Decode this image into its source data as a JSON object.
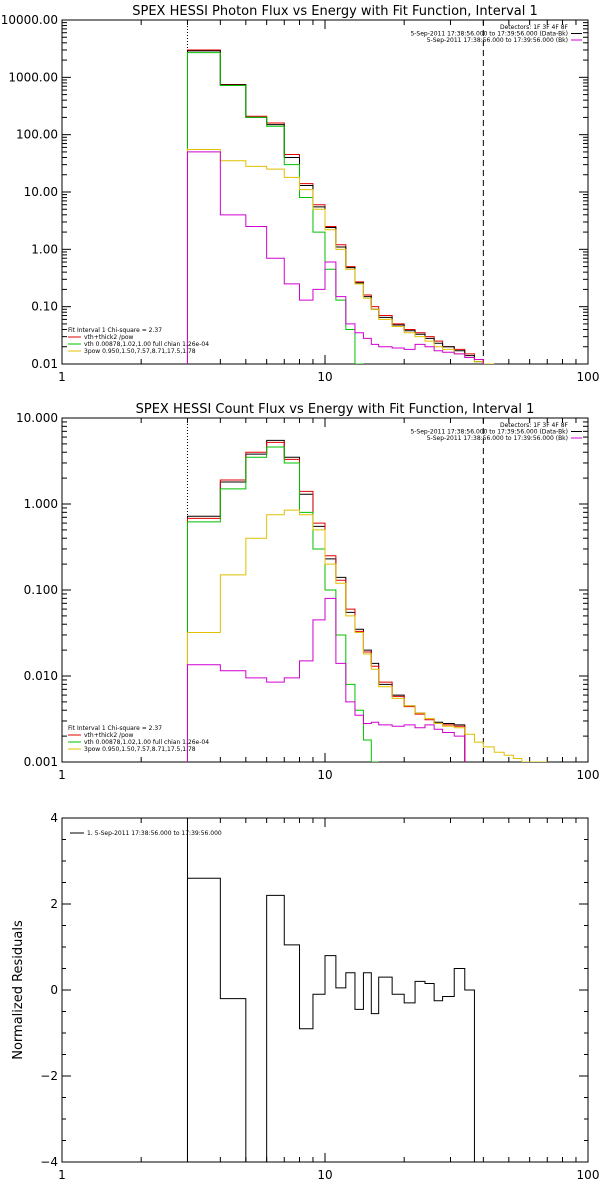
{
  "panels": [
    {
      "title": "SPEX HESSI Photon Flux vs Energy with Fit Function, Interval 1",
      "ylabel": "",
      "ylog": true,
      "ylim": [
        0.01,
        10000
      ],
      "y_ticks": [
        {
          "v": 0.01,
          "label": "0.01"
        },
        {
          "v": 0.1,
          "label": "0.10"
        },
        {
          "v": 1,
          "label": "1.00"
        },
        {
          "v": 10,
          "label": "10.00"
        },
        {
          "v": 100,
          "label": "100.00"
        },
        {
          "v": 1000,
          "label": "1000.00"
        },
        {
          "v": 10000,
          "label": "10000.00"
        }
      ],
      "legend_tr": [
        {
          "text": "Detectors: 1F 3F 4F 8F",
          "color": ""
        },
        {
          "text": "5-Sep-2011 17:38:56.000 to 17:39:56.000 (Data-Bk)",
          "color": "#000000"
        },
        {
          "text": "5-Sep-2011 17:38:56.000 to 17:39:56.000 (Bk)",
          "color": "#d000d0"
        }
      ],
      "legend_bl": [
        {
          "text": "Fit Interval 1   Chi-square = 2.37",
          "color": ""
        },
        {
          "text": "vth+thick2 /pow",
          "color": "#e00000"
        },
        {
          "text": "vth 0.00878,1.02,1.00  full chian 1.26e-04",
          "color": "#00c000"
        },
        {
          "text": "3pow 0.950,1.50,7.57,8.71,17.5,1.78",
          "color": "#e0c000"
        }
      ]
    },
    {
      "title": "SPEX HESSI Count Flux vs Energy with Fit Function, Interval 1",
      "ylabel": "",
      "ylog": true,
      "ylim": [
        0.001,
        10
      ],
      "y_ticks": [
        {
          "v": 0.001,
          "label": "0.001"
        },
        {
          "v": 0.01,
          "label": "0.010"
        },
        {
          "v": 0.1,
          "label": "0.100"
        },
        {
          "v": 1,
          "label": "1.000"
        },
        {
          "v": 10,
          "label": "10.000"
        }
      ],
      "legend_tr": [
        {
          "text": "Detectors: 1F 3F 4F 8F",
          "color": ""
        },
        {
          "text": "5-Sep-2011 17:38:56.000 to 17:39:56.000 (Data-Bk)",
          "color": "#000000"
        },
        {
          "text": "5-Sep-2011 17:38:56.000 to 17:39:56.000 (Bk)",
          "color": "#d000d0"
        }
      ],
      "legend_bl": [
        {
          "text": "Fit Interval 1   Chi-square = 2.37",
          "color": ""
        },
        {
          "text": "vth+thick2 /pow",
          "color": "#e00000"
        },
        {
          "text": "vth 0.00878,1.02,1.00  full chian 1.26e-04",
          "color": "#00c000"
        },
        {
          "text": "3pow 0.950,1.50,7.57,8.71,17.5,1.78",
          "color": "#e0c000"
        }
      ]
    },
    {
      "title": "",
      "ylabel": "Normalized Residuals",
      "ylog": false,
      "ylim": [
        -4,
        4
      ],
      "y_ticks": [
        {
          "v": -4,
          "label": "−4"
        },
        {
          "v": -2,
          "label": "−2"
        },
        {
          "v": 0,
          "label": "0"
        },
        {
          "v": 2,
          "label": "2"
        },
        {
          "v": 4,
          "label": "4"
        }
      ],
      "legend_tr": [],
      "legend_bl": [],
      "legend_tl": [
        {
          "text": "1.  5-Sep-2011 17:38:56.000 to 17:39:56.000",
          "color": "#000000"
        }
      ]
    }
  ],
  "x_ticks": [
    {
      "v": 1,
      "label": "1"
    },
    {
      "v": 10,
      "label": "10"
    },
    {
      "v": 100,
      "label": "100"
    }
  ],
  "chart_data": [
    {
      "type": "line",
      "title": "SPEX HESSI Photon Flux vs Energy with Fit Function, Interval 1",
      "xlabel": "",
      "ylabel": "",
      "xscale": "log",
      "yscale": "log",
      "xlim": [
        1,
        100
      ],
      "ylim": [
        0.01,
        10000
      ],
      "vlines": [
        {
          "x": 3,
          "style": "dotted"
        },
        {
          "x": 40,
          "style": "dashed"
        }
      ],
      "bin_edges": [
        3,
        4,
        5,
        6,
        7,
        8,
        9,
        10,
        11,
        12,
        13,
        14,
        15,
        16,
        18,
        20,
        22,
        24,
        26,
        28,
        31,
        34,
        37,
        40,
        44,
        48
      ],
      "series": [
        {
          "name": "vth+thick2 /pow",
          "color": "#e00000",
          "values": [
            3000,
            750,
            210,
            160,
            45,
            14,
            6,
            2.5,
            1.2,
            0.5,
            0.27,
            0.16,
            0.1,
            0.07,
            0.05,
            0.04,
            0.035,
            0.03,
            0.025,
            0.02,
            0.018,
            0.015,
            0.012,
            null,
            null
          ]
        },
        {
          "name": "",
          "color": "#000000",
          "values": [
            2900,
            740,
            200,
            150,
            40,
            13,
            5.5,
            2.4,
            1.1,
            0.48,
            0.26,
            0.15,
            0.09,
            0.065,
            0.048,
            0.038,
            0.033,
            0.028,
            0.023,
            0.02,
            0.017,
            0.014,
            0.011,
            null,
            null
          ]
        },
        {
          "name": "vth 0.00878,1.02,1.00  full chian 1.26e-04",
          "color": "#00c000",
          "values": [
            2700,
            720,
            200,
            140,
            30,
            8,
            2.0,
            0.45,
            0.13,
            0.04,
            0.01,
            null,
            null,
            null,
            null,
            null,
            null,
            null,
            null,
            null,
            null,
            null,
            null,
            null,
            null
          ]
        },
        {
          "name": "3pow 0.950,1.50,7.57,8.71,17.5,1.78",
          "color": "#e0c000",
          "values": [
            55,
            35,
            28,
            25,
            18,
            11,
            5,
            2.2,
            1.0,
            0.45,
            0.25,
            0.14,
            0.09,
            0.06,
            0.045,
            0.035,
            0.03,
            0.025,
            0.02,
            0.018,
            0.015,
            0.013,
            0.011,
            0.0095,
            null
          ]
        },
        {
          "name": "",
          "color": "#d000d0",
          "values": [
            50,
            4,
            2.5,
            0.7,
            0.25,
            0.13,
            0.2,
            0.6,
            0.15,
            0.05,
            0.035,
            0.028,
            0.022,
            0.02,
            0.019,
            0.018,
            0.022,
            0.02,
            0.017,
            0.016,
            0.015,
            0.013,
            0.012,
            null,
            null
          ]
        }
      ]
    },
    {
      "type": "line",
      "title": "SPEX HESSI Count Flux vs Energy with Fit Function, Interval 1",
      "xlabel": "",
      "ylabel": "",
      "xscale": "log",
      "yscale": "log",
      "xlim": [
        1,
        100
      ],
      "ylim": [
        0.001,
        10
      ],
      "vlines": [
        {
          "x": 3,
          "style": "dotted"
        },
        {
          "x": 40,
          "style": "dashed"
        }
      ],
      "bin_edges": [
        3,
        4,
        5,
        6,
        7,
        8,
        9,
        10,
        11,
        12,
        13,
        14,
        15,
        16,
        18,
        20,
        22,
        24,
        26,
        28,
        31,
        34,
        37,
        40,
        44,
        48,
        52,
        56,
        60,
        65,
        70
      ],
      "series": [
        {
          "name": "",
          "color": "#000000",
          "values": [
            0.72,
            1.8,
            3.8,
            5.5,
            3.5,
            1.3,
            0.55,
            0.23,
            0.14,
            0.055,
            0.035,
            0.02,
            0.014,
            0.008,
            0.006,
            0.0045,
            0.0037,
            0.0032,
            0.0029,
            0.0028,
            0.0027,
            null,
            null,
            null,
            null,
            null,
            null,
            null,
            null,
            null
          ]
        },
        {
          "name": "vth+thick2 /pow",
          "color": "#e00000",
          "values": [
            0.68,
            1.9,
            4.0,
            5.2,
            3.3,
            1.4,
            0.6,
            0.25,
            0.13,
            0.06,
            0.033,
            0.019,
            0.013,
            0.0085,
            0.0058,
            0.0044,
            0.0036,
            0.0031,
            0.0028,
            0.0027,
            0.0026,
            null,
            null,
            null,
            null,
            null,
            null,
            null,
            null,
            null
          ]
        },
        {
          "name": "vth 0.00878,1.02,1.00  full chian 1.26e-04",
          "color": "#00c000",
          "values": [
            0.62,
            1.5,
            3.5,
            4.6,
            3.0,
            0.8,
            0.3,
            0.1,
            0.03,
            0.008,
            0.004,
            0.0018,
            0.001,
            null,
            null,
            null,
            null,
            null,
            null,
            null,
            null,
            null,
            null,
            null,
            null,
            null,
            null,
            null,
            null,
            null
          ]
        },
        {
          "name": "3pow 0.950,1.50,7.57,8.71,17.5,1.78",
          "color": "#e0c000",
          "values": [
            0.032,
            0.15,
            0.4,
            0.75,
            0.85,
            0.75,
            0.5,
            0.2,
            0.12,
            0.05,
            0.032,
            0.018,
            0.012,
            0.0075,
            0.0055,
            0.0045,
            0.0037,
            0.0032,
            0.0028,
            0.0026,
            0.0025,
            0.0021,
            0.0017,
            0.0015,
            0.0013,
            0.0012,
            0.0011,
            0.001,
            0.0009,
            0.0008
          ]
        },
        {
          "name": "",
          "color": "#d000d0",
          "values": [
            0.0135,
            0.0115,
            0.0095,
            0.0085,
            0.0095,
            0.015,
            0.045,
            0.08,
            0.014,
            0.005,
            0.0035,
            0.0028,
            0.0029,
            0.0027,
            0.0026,
            0.0027,
            0.0025,
            0.0027,
            0.0024,
            0.0022,
            0.002,
            null,
            null,
            null,
            null,
            null,
            null,
            null,
            null,
            null
          ]
        }
      ]
    },
    {
      "type": "line",
      "title": "",
      "xlabel": "",
      "ylabel": "Normalized Residuals",
      "xscale": "log",
      "yscale": "linear",
      "xlim": [
        1,
        100
      ],
      "ylim": [
        -4,
        4
      ],
      "bin_edges": [
        3,
        4,
        5,
        6,
        7,
        8,
        9,
        10,
        11,
        12,
        13,
        14,
        15,
        16,
        18,
        20,
        22,
        24,
        26,
        28,
        31,
        34,
        37,
        40
      ],
      "series": [
        {
          "name": "1.  5-Sep-2011 17:38:56.000 to 17:39:56.000",
          "color": "#000000",
          "values": [
            2.6,
            -0.2,
            -4.0,
            2.2,
            1.05,
            -0.9,
            -0.1,
            0.8,
            0.05,
            0.4,
            -0.45,
            0.4,
            -0.55,
            0.3,
            -0.1,
            -0.3,
            0.2,
            0.15,
            -0.25,
            -0.15,
            0.5,
            0.0,
            null
          ]
        }
      ]
    }
  ]
}
